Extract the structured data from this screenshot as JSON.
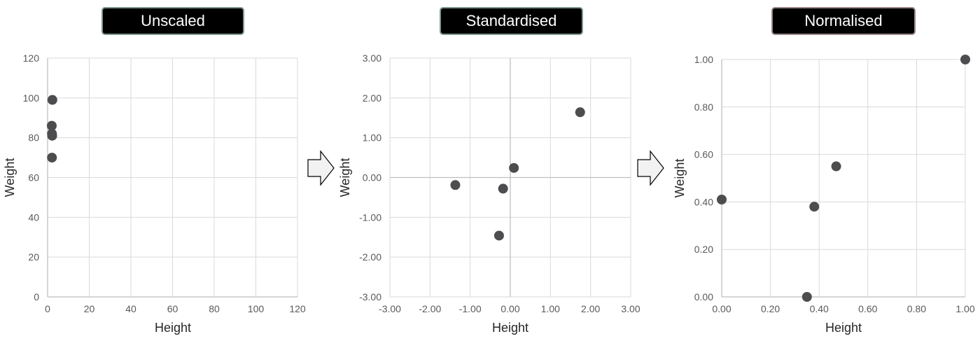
{
  "titles": [
    "Unscaled",
    "Standardised",
    "Normalised"
  ],
  "colors": {
    "marker": "#4d4d4f",
    "grid": "#d9d9d9",
    "axis": "#bfbfbf",
    "zero_line": "#bfbfbf",
    "tick_text": "#595959",
    "axis_label": "#262626",
    "title_bg": "#000000",
    "title_text": "#ffffff",
    "arrow_fill": "#f2f2f2",
    "arrow_stroke": "#000000"
  },
  "chart_data": [
    {
      "type": "scatter",
      "title": "Unscaled",
      "xlabel": "Height",
      "ylabel": "Weight",
      "xlim": [
        0,
        120
      ],
      "ylim": [
        0,
        120
      ],
      "xticks": [
        0,
        20,
        40,
        60,
        80,
        100,
        120
      ],
      "yticks": [
        0,
        20,
        40,
        60,
        80,
        100,
        120
      ],
      "xtick_labels": [
        "0",
        "20",
        "40",
        "60",
        "80",
        "100",
        "120"
      ],
      "ytick_labels": [
        "0",
        "20",
        "40",
        "60",
        "80",
        "100",
        "120"
      ],
      "grid": true,
      "points": [
        {
          "x": 2.3,
          "y": 99
        },
        {
          "x": 2.0,
          "y": 86
        },
        {
          "x": 2.1,
          "y": 82
        },
        {
          "x": 2.2,
          "y": 81
        },
        {
          "x": 2.1,
          "y": 70
        }
      ]
    },
    {
      "type": "scatter",
      "title": "Standardised",
      "xlabel": "Height",
      "ylabel": "Weight",
      "xlim": [
        -3,
        3
      ],
      "ylim": [
        -3,
        3
      ],
      "xticks": [
        -3,
        -2,
        -1,
        0,
        1,
        2,
        3
      ],
      "yticks": [
        -3,
        -2,
        -1,
        0,
        1,
        2,
        3
      ],
      "xtick_labels": [
        "-3.00",
        "-2.00",
        "-1.00",
        "0.00",
        "1.00",
        "2.00",
        "3.00"
      ],
      "ytick_labels": [
        "-3.00",
        "-2.00",
        "-1.00",
        "0.00",
        "1.00",
        "2.00",
        "3.00"
      ],
      "grid": true,
      "zero_lines": true,
      "points": [
        {
          "x": 1.74,
          "y": 1.64
        },
        {
          "x": 0.09,
          "y": 0.24
        },
        {
          "x": -1.37,
          "y": -0.19
        },
        {
          "x": -0.18,
          "y": -0.28
        },
        {
          "x": -0.28,
          "y": -1.46
        }
      ]
    },
    {
      "type": "scatter",
      "title": "Normalised",
      "xlabel": "Height",
      "ylabel": "Weight",
      "xlim": [
        0,
        1
      ],
      "ylim": [
        0,
        1
      ],
      "xticks": [
        0,
        0.2,
        0.4,
        0.6,
        0.8,
        1.0
      ],
      "yticks": [
        0,
        0.2,
        0.4,
        0.6,
        0.8,
        1.0
      ],
      "xtick_labels": [
        "0.00",
        "0.20",
        "0.40",
        "0.60",
        "0.80",
        "1.00"
      ],
      "ytick_labels": [
        "0.00",
        "0.20",
        "0.40",
        "0.60",
        "0.80",
        "1.00"
      ],
      "grid": true,
      "points": [
        {
          "x": 1.0,
          "y": 1.0
        },
        {
          "x": 0.47,
          "y": 0.55
        },
        {
          "x": 0.0,
          "y": 0.41
        },
        {
          "x": 0.38,
          "y": 0.38
        },
        {
          "x": 0.35,
          "y": 0.0
        }
      ]
    }
  ]
}
